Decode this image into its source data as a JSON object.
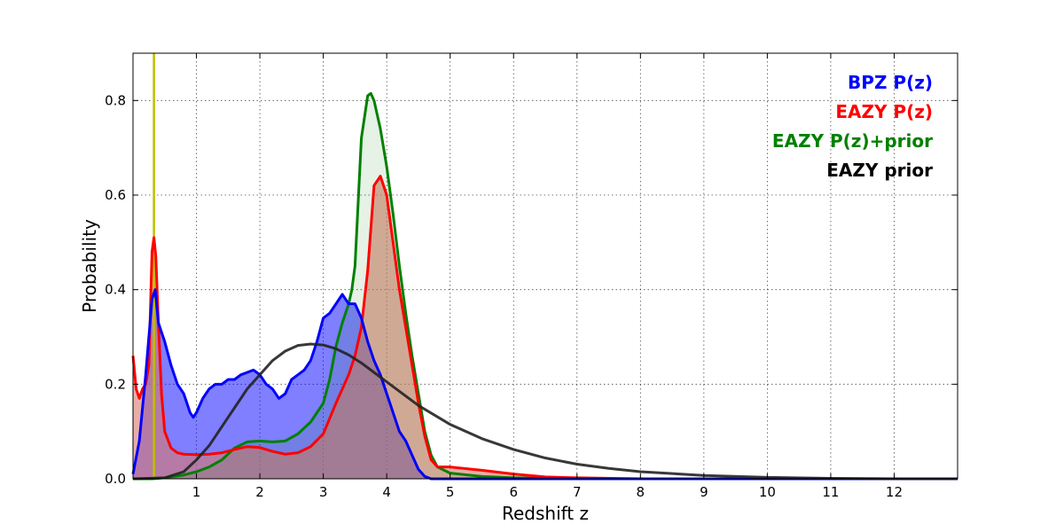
{
  "chart_data": {
    "type": "area",
    "xlabel": "Redshift z",
    "ylabel": "Probability",
    "xlim": [
      0,
      13
    ],
    "ylim": [
      0,
      0.9
    ],
    "xticks": [
      1,
      2,
      3,
      4,
      5,
      6,
      7,
      8,
      9,
      10,
      11,
      12
    ],
    "yticks": [
      0.0,
      0.2,
      0.4,
      0.6,
      0.8
    ],
    "ytick_labels": [
      "0.0",
      "0.2",
      "0.4",
      "0.6",
      "0.8"
    ],
    "grid": true,
    "legend_placement": "top-right",
    "vline": {
      "x": 0.33,
      "color": "#bfbf00"
    },
    "series": [
      {
        "name": "BPZ P(z)",
        "color": "#0000ff",
        "fill": "#0000ff",
        "fill_opacity": 0.5,
        "points": [
          [
            0,
            0.01
          ],
          [
            0.1,
            0.08
          ],
          [
            0.2,
            0.22
          ],
          [
            0.3,
            0.38
          ],
          [
            0.35,
            0.4
          ],
          [
            0.4,
            0.33
          ],
          [
            0.45,
            0.31
          ],
          [
            0.5,
            0.29
          ],
          [
            0.6,
            0.24
          ],
          [
            0.7,
            0.2
          ],
          [
            0.8,
            0.18
          ],
          [
            0.9,
            0.14
          ],
          [
            0.95,
            0.13
          ],
          [
            1.0,
            0.14
          ],
          [
            1.1,
            0.17
          ],
          [
            1.2,
            0.19
          ],
          [
            1.3,
            0.2
          ],
          [
            1.4,
            0.2
          ],
          [
            1.5,
            0.21
          ],
          [
            1.6,
            0.21
          ],
          [
            1.7,
            0.22
          ],
          [
            1.8,
            0.225
          ],
          [
            1.9,
            0.23
          ],
          [
            2.0,
            0.22
          ],
          [
            2.1,
            0.2
          ],
          [
            2.2,
            0.19
          ],
          [
            2.3,
            0.17
          ],
          [
            2.4,
            0.18
          ],
          [
            2.5,
            0.21
          ],
          [
            2.6,
            0.22
          ],
          [
            2.7,
            0.23
          ],
          [
            2.8,
            0.25
          ],
          [
            2.9,
            0.29
          ],
          [
            3.0,
            0.34
          ],
          [
            3.1,
            0.35
          ],
          [
            3.2,
            0.37
          ],
          [
            3.3,
            0.39
          ],
          [
            3.35,
            0.38
          ],
          [
            3.4,
            0.37
          ],
          [
            3.5,
            0.37
          ],
          [
            3.6,
            0.34
          ],
          [
            3.7,
            0.29
          ],
          [
            3.8,
            0.25
          ],
          [
            3.9,
            0.22
          ],
          [
            4.0,
            0.18
          ],
          [
            4.1,
            0.14
          ],
          [
            4.2,
            0.1
          ],
          [
            4.3,
            0.08
          ],
          [
            4.4,
            0.05
          ],
          [
            4.5,
            0.02
          ],
          [
            4.6,
            0.005
          ],
          [
            4.7,
            0.0
          ],
          [
            13,
            0.0
          ]
        ]
      },
      {
        "name": "EAZY P(z)",
        "color": "#ff0000",
        "fill": "#d9786a",
        "fill_opacity": 0.6,
        "points": [
          [
            0,
            0.26
          ],
          [
            0.05,
            0.19
          ],
          [
            0.1,
            0.17
          ],
          [
            0.15,
            0.19
          ],
          [
            0.2,
            0.2
          ],
          [
            0.25,
            0.24
          ],
          [
            0.3,
            0.48
          ],
          [
            0.33,
            0.51
          ],
          [
            0.36,
            0.47
          ],
          [
            0.4,
            0.33
          ],
          [
            0.45,
            0.18
          ],
          [
            0.5,
            0.1
          ],
          [
            0.6,
            0.065
          ],
          [
            0.7,
            0.055
          ],
          [
            0.8,
            0.052
          ],
          [
            1.0,
            0.051
          ],
          [
            1.2,
            0.052
          ],
          [
            1.4,
            0.055
          ],
          [
            1.6,
            0.062
          ],
          [
            1.8,
            0.068
          ],
          [
            2.0,
            0.066
          ],
          [
            2.2,
            0.058
          ],
          [
            2.4,
            0.052
          ],
          [
            2.6,
            0.055
          ],
          [
            2.8,
            0.068
          ],
          [
            3.0,
            0.095
          ],
          [
            3.2,
            0.16
          ],
          [
            3.4,
            0.22
          ],
          [
            3.5,
            0.26
          ],
          [
            3.6,
            0.32
          ],
          [
            3.7,
            0.44
          ],
          [
            3.8,
            0.62
          ],
          [
            3.9,
            0.64
          ],
          [
            4.0,
            0.6
          ],
          [
            4.1,
            0.5
          ],
          [
            4.2,
            0.4
          ],
          [
            4.3,
            0.32
          ],
          [
            4.4,
            0.24
          ],
          [
            4.5,
            0.16
          ],
          [
            4.6,
            0.09
          ],
          [
            4.7,
            0.04
          ],
          [
            4.8,
            0.025
          ],
          [
            5.0,
            0.025
          ],
          [
            5.5,
            0.018
          ],
          [
            6.0,
            0.01
          ],
          [
            6.5,
            0.004
          ],
          [
            7.0,
            0.002
          ],
          [
            8.0,
            0.0
          ],
          [
            13,
            0.0
          ]
        ]
      },
      {
        "name": "EAZY P(z)+prior",
        "color": "#008000",
        "fill": "#008000",
        "fill_opacity": 0.1,
        "points": [
          [
            0,
            0.0
          ],
          [
            0.3,
            0.0
          ],
          [
            0.5,
            0.002
          ],
          [
            0.8,
            0.008
          ],
          [
            1.0,
            0.015
          ],
          [
            1.2,
            0.025
          ],
          [
            1.4,
            0.04
          ],
          [
            1.6,
            0.065
          ],
          [
            1.8,
            0.078
          ],
          [
            2.0,
            0.08
          ],
          [
            2.2,
            0.078
          ],
          [
            2.4,
            0.08
          ],
          [
            2.6,
            0.095
          ],
          [
            2.8,
            0.12
          ],
          [
            3.0,
            0.16
          ],
          [
            3.1,
            0.21
          ],
          [
            3.2,
            0.28
          ],
          [
            3.3,
            0.33
          ],
          [
            3.4,
            0.37
          ],
          [
            3.45,
            0.4
          ],
          [
            3.5,
            0.45
          ],
          [
            3.6,
            0.72
          ],
          [
            3.7,
            0.81
          ],
          [
            3.75,
            0.815
          ],
          [
            3.8,
            0.8
          ],
          [
            3.9,
            0.74
          ],
          [
            4.0,
            0.66
          ],
          [
            4.1,
            0.56
          ],
          [
            4.2,
            0.45
          ],
          [
            4.3,
            0.35
          ],
          [
            4.4,
            0.26
          ],
          [
            4.5,
            0.18
          ],
          [
            4.6,
            0.1
          ],
          [
            4.7,
            0.05
          ],
          [
            4.8,
            0.025
          ],
          [
            5.0,
            0.012
          ],
          [
            5.5,
            0.005
          ],
          [
            6.0,
            0.002
          ],
          [
            7.0,
            0.0
          ],
          [
            13,
            0.0
          ]
        ]
      },
      {
        "name": "EAZY prior",
        "color": "#222222",
        "fill": null,
        "fill_opacity": 0,
        "points": [
          [
            0,
            0.0
          ],
          [
            0.5,
            0.002
          ],
          [
            0.8,
            0.015
          ],
          [
            1.0,
            0.04
          ],
          [
            1.2,
            0.07
          ],
          [
            1.4,
            0.11
          ],
          [
            1.6,
            0.15
          ],
          [
            1.8,
            0.19
          ],
          [
            2.0,
            0.22
          ],
          [
            2.2,
            0.25
          ],
          [
            2.4,
            0.27
          ],
          [
            2.6,
            0.282
          ],
          [
            2.8,
            0.285
          ],
          [
            3.0,
            0.283
          ],
          [
            3.2,
            0.275
          ],
          [
            3.4,
            0.262
          ],
          [
            3.6,
            0.245
          ],
          [
            3.8,
            0.225
          ],
          [
            4.0,
            0.205
          ],
          [
            4.5,
            0.155
          ],
          [
            5.0,
            0.115
          ],
          [
            5.5,
            0.085
          ],
          [
            6.0,
            0.062
          ],
          [
            6.5,
            0.044
          ],
          [
            7.0,
            0.031
          ],
          [
            7.5,
            0.022
          ],
          [
            8.0,
            0.015
          ],
          [
            9.0,
            0.007
          ],
          [
            10.0,
            0.003
          ],
          [
            11.0,
            0.001
          ],
          [
            12.0,
            0.0
          ],
          [
            13.0,
            0.0
          ]
        ]
      }
    ]
  }
}
